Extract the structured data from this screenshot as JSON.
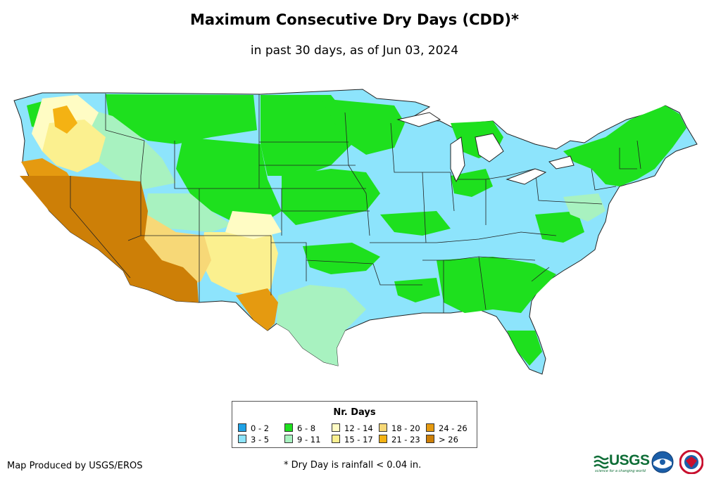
{
  "header": {
    "title": "Maximum Consecutive Dry Days (CDD)*",
    "subtitle": "in past 30 days, as of Jun 03, 2024"
  },
  "legend": {
    "title": "Nr. Days",
    "items": [
      {
        "label": "0 - 2",
        "color": "#1fa2e6"
      },
      {
        "label": "3 - 5",
        "color": "#8de4fc"
      },
      {
        "label": "6 - 8",
        "color": "#1ee01e"
      },
      {
        "label": "9 - 11",
        "color": "#a8f2c0"
      },
      {
        "label": "12 - 14",
        "color": "#fffcc4"
      },
      {
        "label": "15 - 17",
        "color": "#fbf08f"
      },
      {
        "label": "18 - 20",
        "color": "#f7d877"
      },
      {
        "label": "21 - 23",
        "color": "#f4b213"
      },
      {
        "label": "24 - 26",
        "color": "#e59a10"
      },
      {
        "label": "> 26",
        "color": "#cd7f07"
      }
    ]
  },
  "footer": {
    "producer": "Map Produced by USGS/EROS",
    "footnote": "* Dry Day is rainfall < 0.04 in.",
    "usgs_logo_text": "USGS",
    "usgs_tagline": "science for a changing world"
  }
}
